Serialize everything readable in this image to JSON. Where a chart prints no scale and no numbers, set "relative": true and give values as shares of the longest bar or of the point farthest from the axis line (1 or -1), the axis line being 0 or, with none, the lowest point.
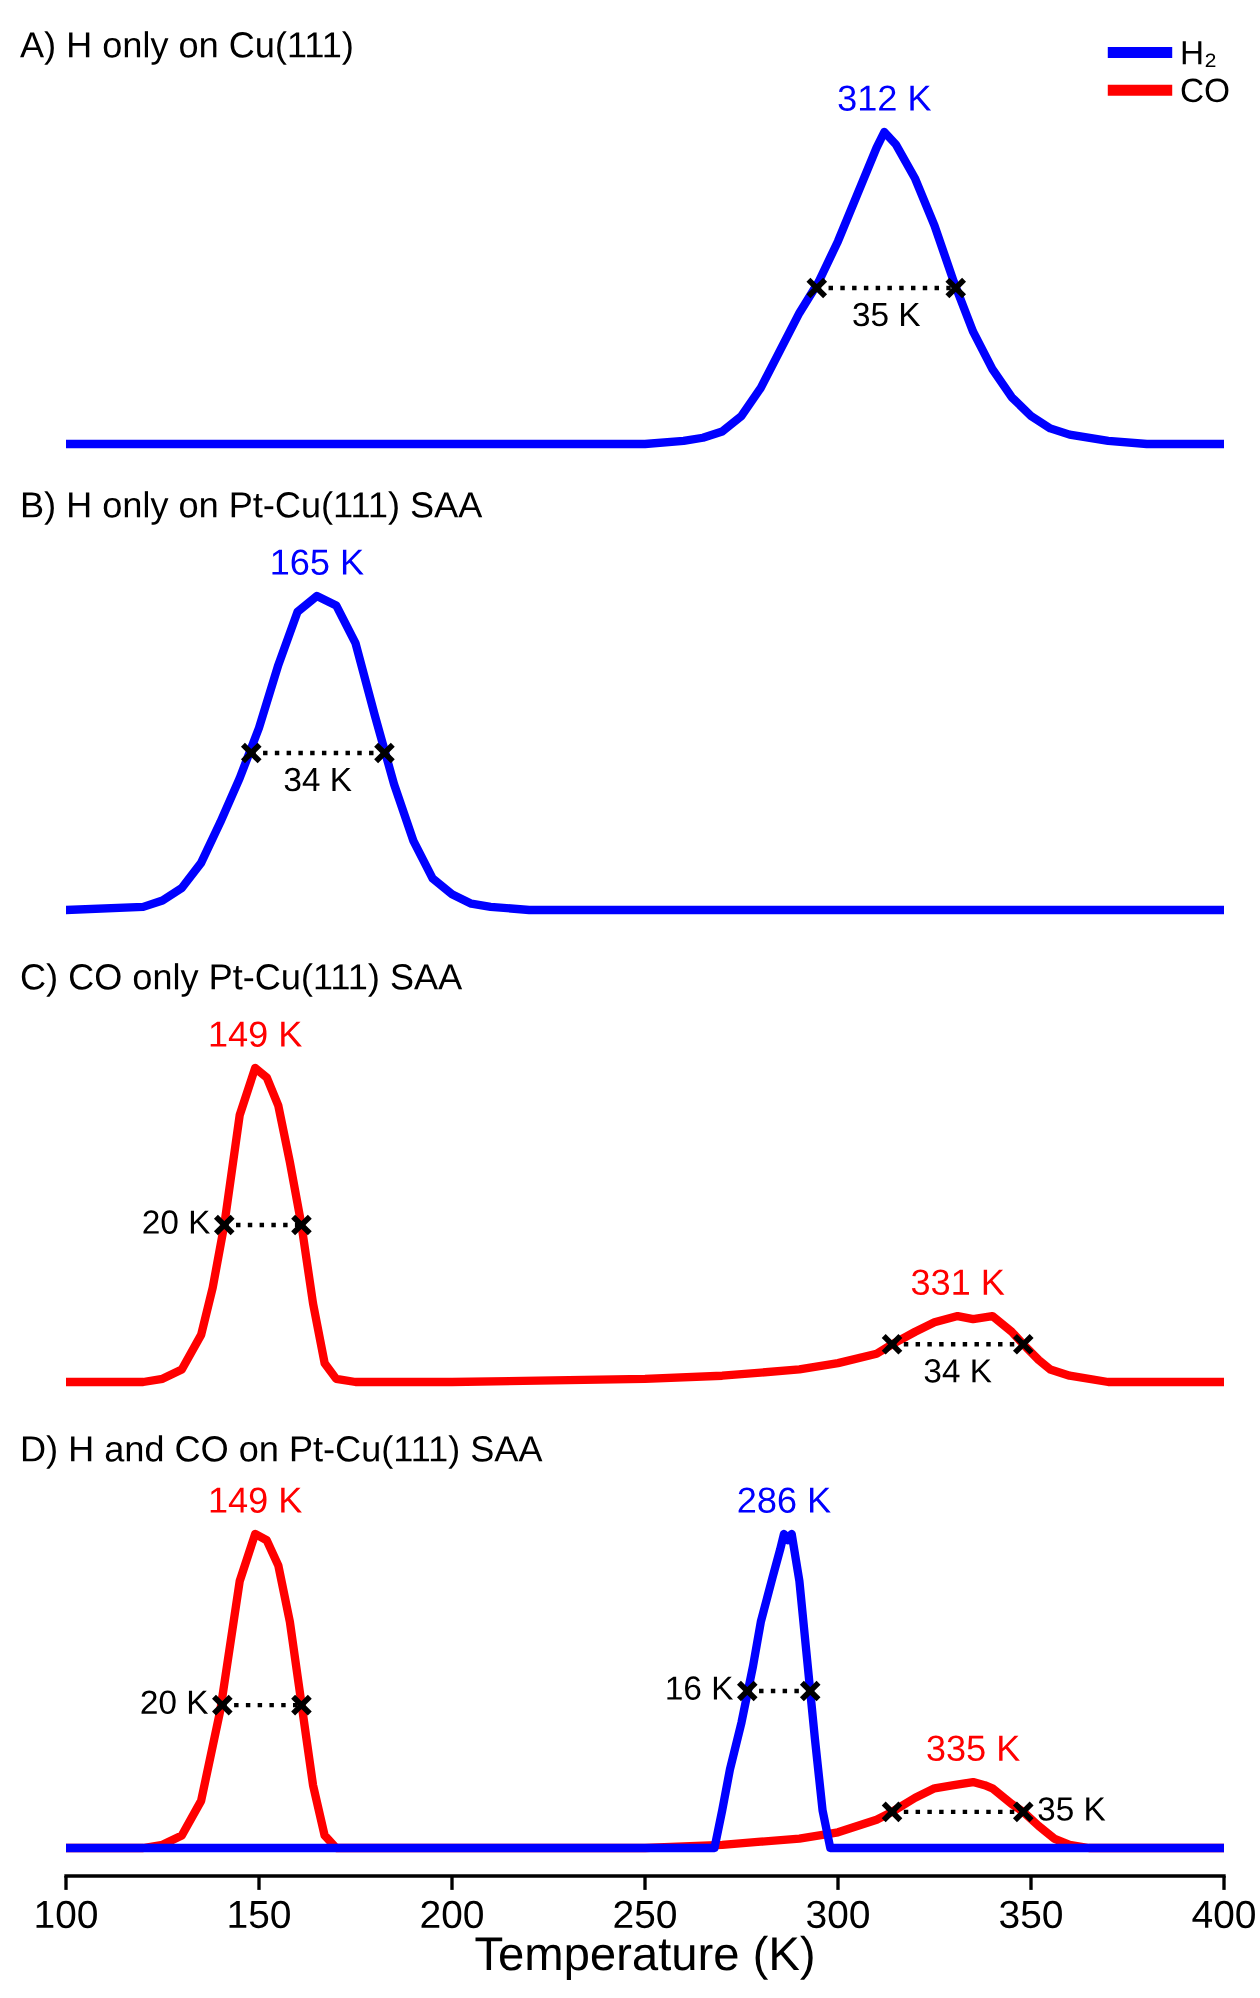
{
  "chart_data": [
    {
      "type": "line",
      "title": "A) H only on Cu(111)",
      "relative": true,
      "xlim": [
        100,
        400
      ],
      "tick_labels": false,
      "legend": "top right",
      "series": [
        {
          "name": "H₂",
          "color": "#0000ff",
          "x": [
            100,
            250,
            260,
            265,
            270,
            275,
            280,
            285,
            290,
            295,
            300,
            305,
            310,
            312,
            315,
            320,
            325,
            330,
            335,
            340,
            345,
            350,
            355,
            360,
            370,
            380,
            400
          ],
          "values": [
            0,
            0,
            0.01,
            0.02,
            0.04,
            0.09,
            0.18,
            0.3,
            0.42,
            0.52,
            0.65,
            0.8,
            0.95,
            1,
            0.96,
            0.85,
            0.7,
            0.52,
            0.36,
            0.24,
            0.15,
            0.09,
            0.05,
            0.03,
            0.01,
            0,
            0
          ]
        },
        {
          "color": "#000000",
          "line_style": "dotted",
          "marker": "cross",
          "x": [
            294.5,
            330.5
          ],
          "values": [
            0.5,
            0.5
          ]
        }
      ],
      "annotations": [
        {
          "text": "312 K",
          "x": 312,
          "y": 1
        },
        {
          "text": "35 K",
          "x": 312.5,
          "y": 0.5
        }
      ]
    },
    {
      "type": "line",
      "title": "B) H only on Pt-Cu(111) SAA",
      "relative": true,
      "xlim": [
        100,
        400
      ],
      "tick_labels": false,
      "series": [
        {
          "color": "#0000ff",
          "x": [
            100,
            120,
            125,
            130,
            135,
            140,
            145,
            150,
            155,
            160,
            165,
            170,
            175,
            180,
            185,
            190,
            195,
            200,
            205,
            210,
            220,
            250,
            400
          ],
          "values": [
            0,
            0.01,
            0.03,
            0.07,
            0.15,
            0.28,
            0.42,
            0.58,
            0.78,
            0.95,
            1,
            0.97,
            0.85,
            0.62,
            0.4,
            0.22,
            0.1,
            0.05,
            0.02,
            0.01,
            0,
            0,
            0
          ]
        },
        {
          "color": "#000000",
          "line_style": "dotted",
          "marker": "cross",
          "x": [
            148,
            182.5
          ],
          "values": [
            0.5,
            0.5
          ]
        }
      ],
      "annotations": [
        {
          "text": "165 K",
          "x": 165,
          "y": 1
        },
        {
          "text": "34 K",
          "x": 165.2,
          "y": 0.5
        }
      ]
    },
    {
      "type": "line",
      "title": "C) CO only Pt-Cu(111) SAA",
      "relative": true,
      "xlim": [
        100,
        400
      ],
      "tick_labels": false,
      "series": [
        {
          "color": "#ff0000",
          "x": [
            100,
            120,
            125,
            130,
            135,
            138,
            141,
            145,
            149,
            152,
            155,
            158,
            161,
            164,
            167,
            170,
            175,
            200,
            250,
            270,
            290,
            300,
            310,
            314,
            320,
            325,
            331,
            335,
            340,
            345,
            348,
            352,
            355,
            360,
            370,
            400
          ],
          "values": [
            0,
            0,
            0.01,
            0.04,
            0.15,
            0.3,
            0.5,
            0.85,
            1,
            0.97,
            0.88,
            0.7,
            0.5,
            0.25,
            0.06,
            0.01,
            0,
            0,
            0.01,
            0.02,
            0.04,
            0.06,
            0.09,
            0.12,
            0.16,
            0.19,
            0.21,
            0.2,
            0.21,
            0.16,
            0.12,
            0.07,
            0.04,
            0.02,
            0,
            0
          ]
        },
        {
          "color": "#000000",
          "line_style": "dotted",
          "marker": "cross",
          "x": [
            141,
            161
          ],
          "values": [
            0.5,
            0.5
          ]
        },
        {
          "color": "#000000",
          "line_style": "dotted",
          "marker": "cross",
          "x": [
            314,
            348
          ],
          "values": [
            0.12,
            0.12
          ]
        }
      ],
      "annotations": [
        {
          "text": "149 K",
          "x": 149,
          "y": 1
        },
        {
          "text": "20 K",
          "x": 141,
          "y": 0.5
        },
        {
          "text": "331 K",
          "x": 331,
          "y": 0.21
        },
        {
          "text": "34 K",
          "x": 331,
          "y": 0.12
        }
      ]
    },
    {
      "type": "line",
      "title": "D) H and CO on Pt-Cu(111) SAA",
      "relative": true,
      "xlim": [
        100,
        400
      ],
      "xticks": [
        100,
        150,
        200,
        250,
        300,
        350,
        400
      ],
      "tick_labels": "x",
      "xlabel": "Temperature (K)",
      "series": [
        {
          "name": "CO",
          "color": "#ff0000",
          "x": [
            100,
            120,
            125,
            130,
            135,
            140,
            145,
            149,
            152,
            155,
            158,
            161,
            164,
            167,
            170,
            200,
            250,
            270,
            280,
            290,
            300,
            310,
            314,
            320,
            325,
            330,
            335,
            338,
            340,
            345,
            348,
            352,
            356,
            360,
            365,
            400
          ],
          "values": [
            0,
            0,
            0.01,
            0.04,
            0.15,
            0.44,
            0.85,
            1,
            0.98,
            0.9,
            0.72,
            0.46,
            0.2,
            0.04,
            0,
            0,
            0,
            0.01,
            0.02,
            0.03,
            0.05,
            0.09,
            0.115,
            0.16,
            0.19,
            0.2,
            0.21,
            0.2,
            0.19,
            0.14,
            0.115,
            0.07,
            0.03,
            0.01,
            0,
            0
          ]
        },
        {
          "name": "H₂",
          "color": "#0000ff",
          "x": [
            100,
            268,
            270,
            272,
            275,
            278,
            280,
            283,
            285,
            286,
            287,
            288,
            290,
            292,
            294,
            296,
            298,
            400
          ],
          "values": [
            0,
            0,
            0.12,
            0.25,
            0.4,
            0.58,
            0.72,
            0.86,
            0.95,
            1,
            0.98,
            1,
            0.85,
            0.6,
            0.35,
            0.12,
            0,
            0
          ]
        },
        {
          "color": "#000000",
          "line_style": "dotted",
          "marker": "cross",
          "x": [
            140.5,
            161
          ],
          "values": [
            0.455,
            0.455
          ]
        },
        {
          "color": "#000000",
          "line_style": "dotted",
          "marker": "cross",
          "x": [
            276.5,
            292.8
          ],
          "values": [
            0.5,
            0.5
          ]
        },
        {
          "color": "#000000",
          "line_style": "dotted",
          "marker": "cross",
          "x": [
            314,
            348
          ],
          "values": [
            0.115,
            0.115
          ]
        }
      ],
      "annotations": [
        {
          "text": "149 K",
          "x": 149,
          "y": 1
        },
        {
          "text": "20 K",
          "x": 140.5,
          "y": 0.455
        },
        {
          "text": "286 K",
          "x": 286,
          "y": 1
        },
        {
          "text": "16 K",
          "x": 276.5,
          "y": 0.5
        },
        {
          "text": "335 K",
          "x": 335,
          "y": 0.21
        },
        {
          "text": "35 K",
          "x": 348,
          "y": 0.115
        }
      ]
    }
  ]
}
